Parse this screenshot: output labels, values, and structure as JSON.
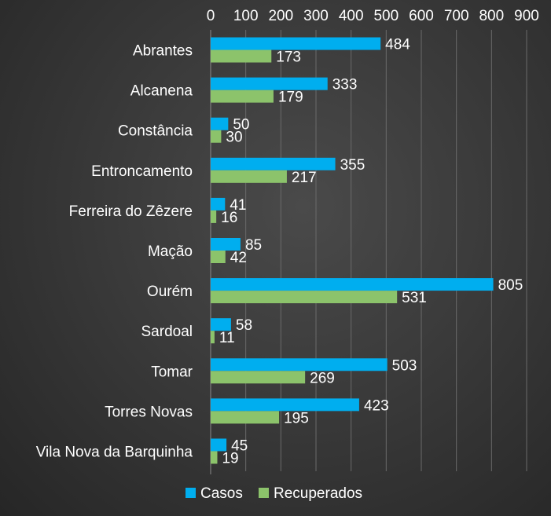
{
  "chart_data": {
    "type": "bar",
    "orientation": "horizontal",
    "categories": [
      "Abrantes",
      "Alcanena",
      "Constância",
      "Entroncamento",
      "Ferreira do Zêzere",
      "Mação",
      "Ourém",
      "Sardoal",
      "Tomar",
      "Torres Novas",
      "Vila Nova da Barquinha"
    ],
    "series": [
      {
        "name": "Casos",
        "color": "#00aeef",
        "values": [
          484,
          333,
          50,
          355,
          41,
          85,
          805,
          58,
          503,
          423,
          45
        ]
      },
      {
        "name": "Recuperados",
        "color": "#8cc36b",
        "values": [
          173,
          179,
          30,
          217,
          16,
          42,
          531,
          11,
          269,
          195,
          19
        ]
      }
    ],
    "xlim": [
      0,
      900
    ],
    "xticks": [
      0,
      100,
      200,
      300,
      400,
      500,
      600,
      700,
      800,
      900
    ],
    "x_axis_position": "top",
    "grid": true,
    "legend_position": "bottom",
    "title": "",
    "xlabel": "",
    "ylabel": ""
  }
}
